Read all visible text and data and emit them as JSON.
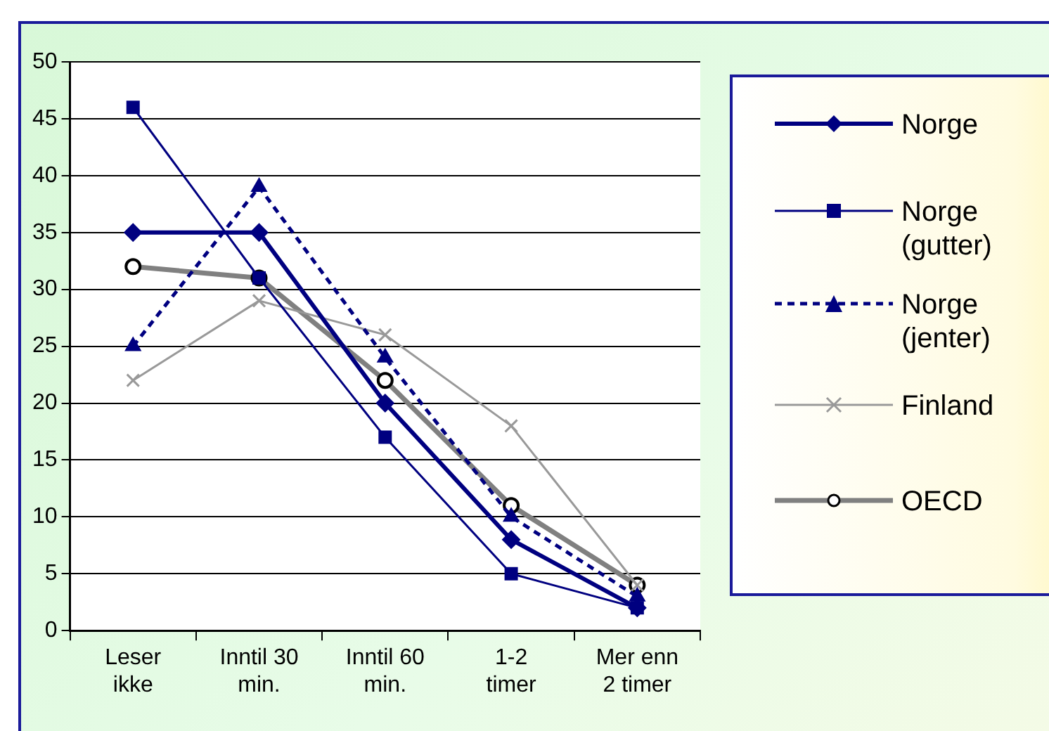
{
  "chart_data": {
    "type": "line",
    "categories": [
      "Leser ikke",
      "Inntil 30 min.",
      "Inntil 60 min.",
      "1-2 timer",
      "Mer enn 2 timer"
    ],
    "ylim": [
      0,
      50
    ],
    "yticks": [
      0,
      5,
      10,
      15,
      20,
      25,
      30,
      35,
      40,
      45,
      50
    ],
    "grid": "y",
    "legend": "right",
    "series": [
      {
        "name": "Norge",
        "color": "#000080",
        "marker": "diamond",
        "line_style": "solid",
        "values": [
          35,
          35,
          20,
          8,
          2
        ]
      },
      {
        "name": "Norge (gutter)",
        "color": "#000080",
        "marker": "square",
        "line_style": "solid",
        "values": [
          46,
          31,
          17,
          5,
          2
        ]
      },
      {
        "name": "Norge (jenter)",
        "color": "#000080",
        "marker": "triangle",
        "line_style": "dashed",
        "values": [
          25,
          39,
          24,
          10,
          3
        ]
      },
      {
        "name": "Finland",
        "color": "#999999",
        "marker": "cross",
        "line_style": "solid",
        "values": [
          22,
          29,
          26,
          18,
          4
        ]
      },
      {
        "name": "OECD",
        "color": "#808080",
        "marker": "circle",
        "line_style": "solid",
        "values": [
          32,
          31,
          22,
          11,
          4
        ]
      }
    ]
  }
}
